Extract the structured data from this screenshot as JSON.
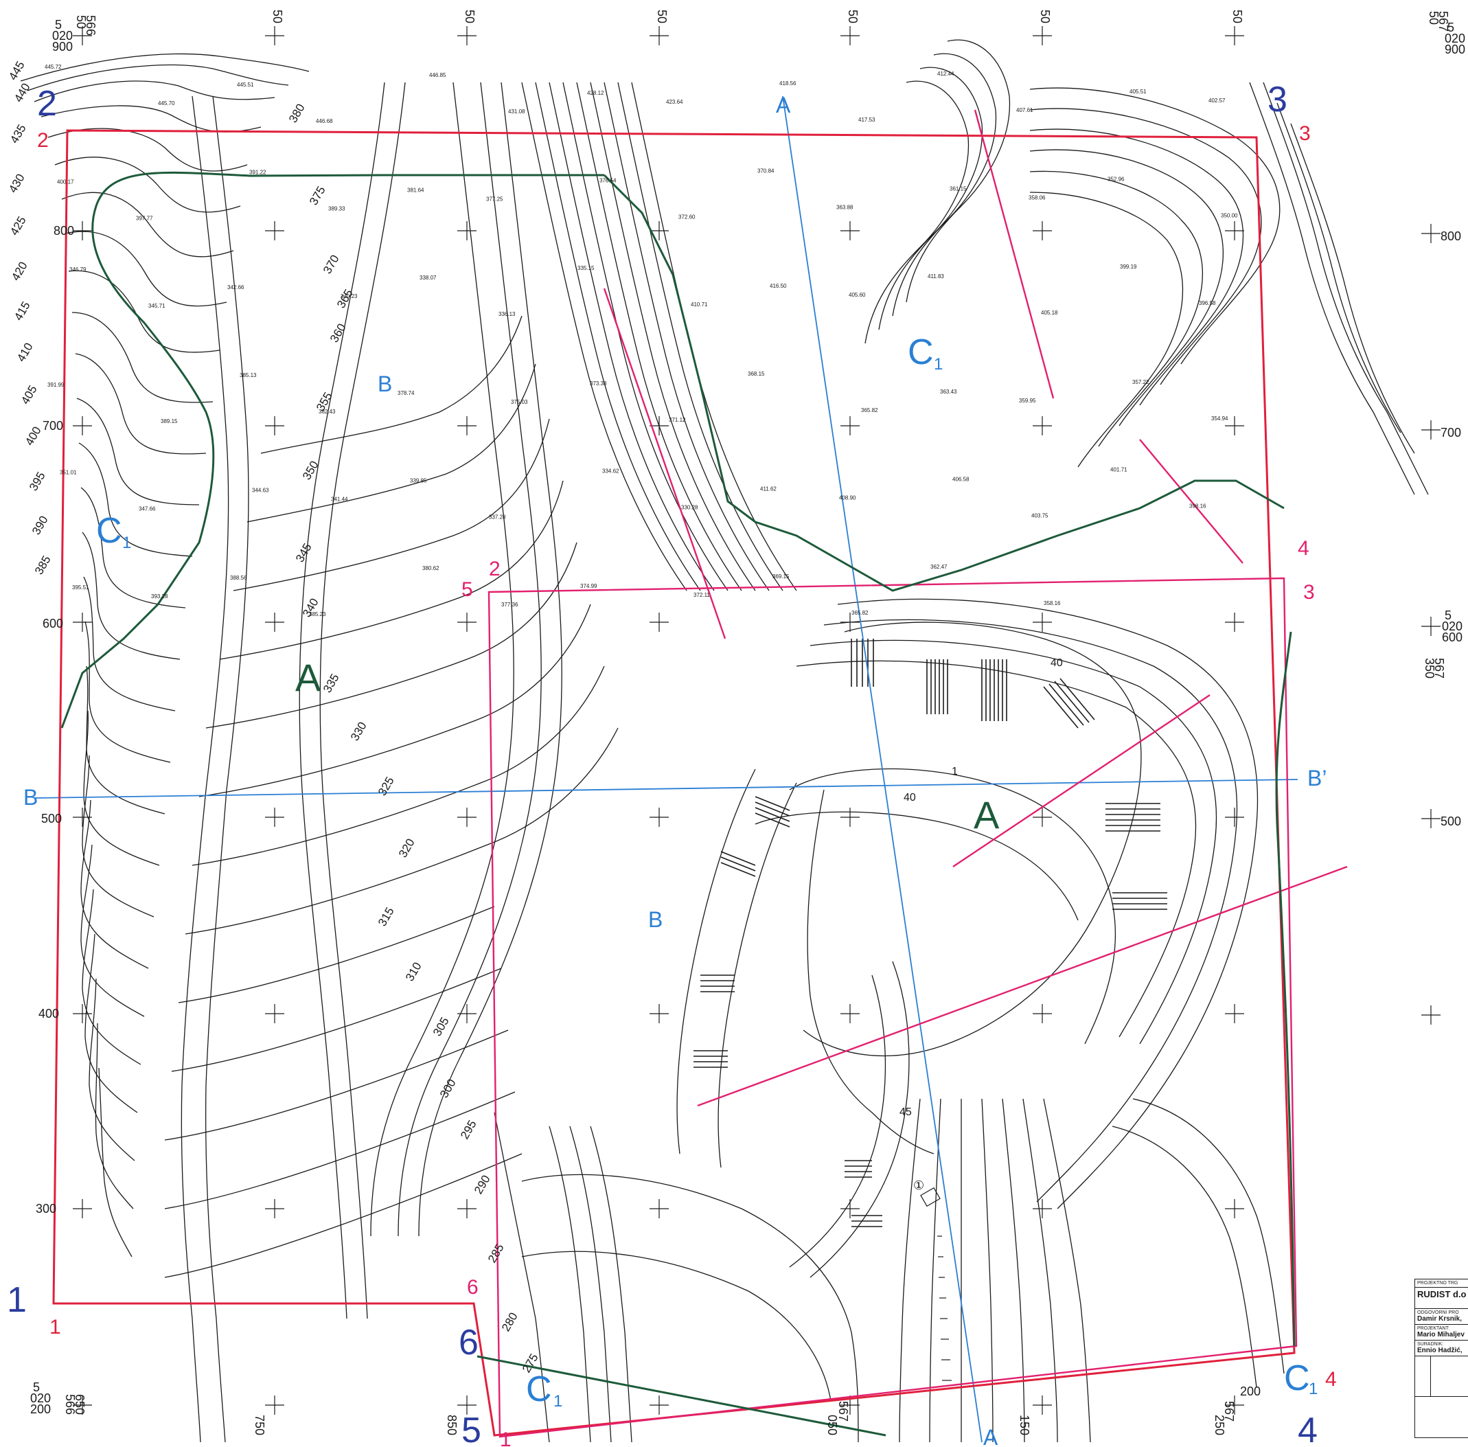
{
  "map": {
    "colors": {
      "contour": "#1a1a1a",
      "boundary_red": "#e0203c",
      "boundary_magenta": "#e2206e",
      "zone_green": "#1d5a3a",
      "section_blue": "#2a7fd4",
      "point_blue": "#2b3c9e"
    },
    "grid_labels": {
      "top": [
        "50",
        "50",
        "50",
        "50",
        "50",
        "50"
      ],
      "top_left_corner": [
        "5",
        "020",
        "900",
        "566",
        "50"
      ],
      "top_right_corner": [
        "5",
        "020",
        "900",
        "567",
        "50"
      ],
      "right": [
        "800",
        "700",
        "500"
      ],
      "right_mid": [
        "5",
        "020",
        "600",
        "567",
        "350"
      ],
      "left": [
        "800",
        "700",
        "600",
        "500",
        "400",
        "300"
      ],
      "bottom": [
        "750",
        "850",
        "050",
        "150",
        "250"
      ],
      "bottom_left_corner": [
        "5",
        "020",
        "200",
        "566",
        "650"
      ],
      "bottom_mid": [
        "567"
      ],
      "bottom_right_near": [
        "567",
        "200"
      ]
    },
    "contour_index_labels": [
      "445",
      "440",
      "435",
      "430",
      "425",
      "420",
      "415",
      "410",
      "405",
      "400",
      "395",
      "390",
      "385",
      "380",
      "375",
      "370",
      "365",
      "360",
      "355",
      "350",
      "345",
      "340",
      "335",
      "330",
      "325",
      "320",
      "315",
      "310",
      "305",
      "300",
      "295",
      "290",
      "285",
      "280",
      "275"
    ],
    "spot_elevations": [
      "445.72",
      "445.70",
      "445.51",
      "446.68",
      "446.85",
      "431.08",
      "428.12",
      "423.64",
      "418.56",
      "417.53",
      "412.44",
      "407.61",
      "405.51",
      "402.57",
      "400.17",
      "397.77",
      "391.22",
      "389.33",
      "381.64",
      "377.25",
      "376.54",
      "372.60",
      "370.84",
      "363.88",
      "361.15",
      "358.06",
      "352.96",
      "350.00",
      "346.79",
      "345.71",
      "342.66",
      "340.23",
      "338.07",
      "336.13",
      "335.15",
      "410.71",
      "416.50",
      "405.60",
      "411.83",
      "405.18",
      "399.19",
      "396.58",
      "391.99",
      "389.15",
      "385.13",
      "382.43",
      "378.74",
      "375.03",
      "373.38",
      "371.12",
      "368.15",
      "365.82",
      "363.43",
      "359.95",
      "357.22",
      "354.94",
      "351.01",
      "347.66",
      "344.63",
      "341.44",
      "339.85",
      "337.28",
      "334.62",
      "330.28",
      "411.62",
      "408.90",
      "406.58",
      "403.75",
      "401.71",
      "398.16",
      "395.51",
      "393.28",
      "388.56",
      "385.23",
      "380.62",
      "377.36",
      "374.99",
      "372.11",
      "369.15",
      "365.82",
      "362.47",
      "358.16"
    ],
    "zone_labels": {
      "A_left": "A",
      "A_right": "A",
      "C1_left": "C",
      "C1_center": "C",
      "C1_bottom_left": "C",
      "C1_bottom_right": "C",
      "subscript": "1"
    },
    "section_labels": {
      "A_top": "A",
      "A_bottom": "A",
      "B_left": "B",
      "B_right": "B’",
      "B_upper": "B",
      "B_lower": "B"
    },
    "corner_points_blue": [
      "1",
      "2",
      "3",
      "4",
      "5",
      "6"
    ],
    "corner_points_red": [
      "1",
      "2",
      "3",
      "4"
    ],
    "corner_points_magenta": [
      "2",
      "3",
      "4",
      "5",
      "6",
      "1"
    ],
    "local_marks": [
      "40",
      "40",
      "1",
      "45",
      "①"
    ]
  },
  "title_block": {
    "investor_caption": "PROJEKTNO TRG",
    "company": "RUDIST d.o",
    "responsible_caption": "ODGOVORNI PRO",
    "responsible_name": "Damir Krsnik,",
    "designer_caption": "PROJEKTANT:",
    "designer_name": "Mario Mihaljev",
    "associate_caption": "SURADNIK:",
    "associate_name": "Ennio Hadžić,"
  }
}
